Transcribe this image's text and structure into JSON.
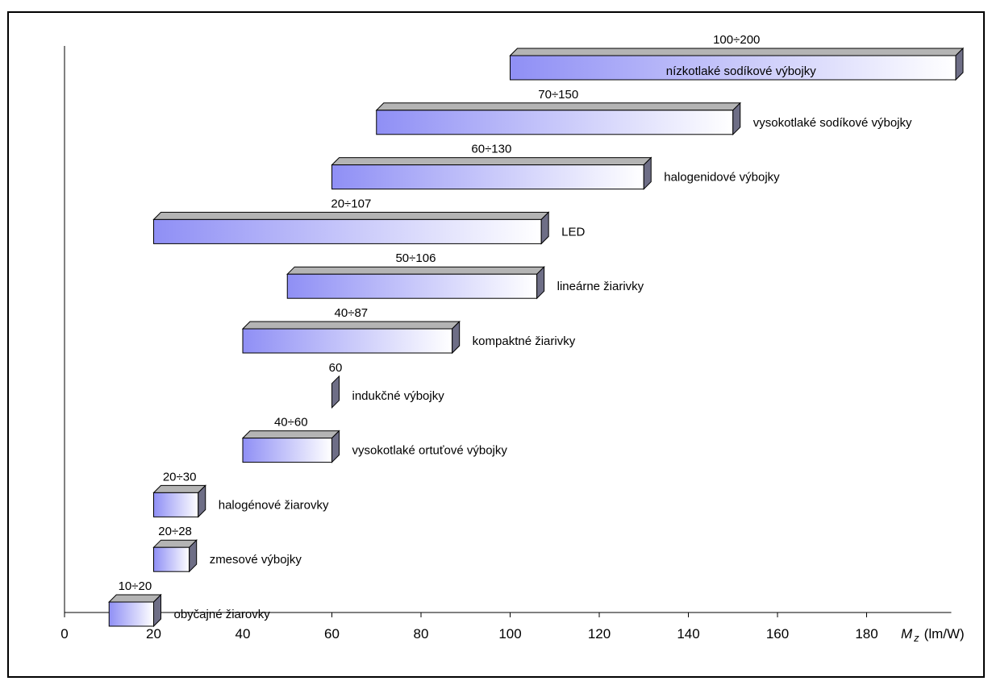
{
  "chart_data": {
    "type": "bar",
    "orientation": "horizontal-range",
    "xlabel_symbol": "M",
    "xlabel_subscript": "z",
    "xlabel_unit": "(lm/W)",
    "xlim": [
      0,
      200
    ],
    "xticks": [
      0,
      20,
      40,
      60,
      80,
      100,
      120,
      140,
      160,
      180
    ],
    "grid": false,
    "colors": {
      "bar_start": "#8f8ff5",
      "bar_end": "#ffffff",
      "bar_top": "#b4b4b4",
      "bar_side": "#6e6e86"
    },
    "bars": [
      {
        "name": "nízkotlaké sodíkové výbojky",
        "label": "100÷200",
        "min": 100,
        "max": 200
      },
      {
        "name": "vysokotlaké sodíkové výbojky",
        "label": "70÷150",
        "min": 70,
        "max": 150
      },
      {
        "name": "halogenidové výbojky",
        "label": "60÷130",
        "min": 60,
        "max": 130
      },
      {
        "name": "LED",
        "label": "20÷107",
        "min": 20,
        "max": 107
      },
      {
        "name": "lineárne žiarivky",
        "label": "50÷106",
        "min": 50,
        "max": 106
      },
      {
        "name": "kompaktné žiarivky",
        "label": "40÷87",
        "min": 40,
        "max": 87
      },
      {
        "name": "indukčné výbojky",
        "label": "60",
        "min": 60,
        "max": 60
      },
      {
        "name": "vysokotlaké ortuťové výbojky",
        "label": "40÷60",
        "min": 40,
        "max": 60
      },
      {
        "name": "halogénové žiarovky",
        "label": "20÷30",
        "min": 20,
        "max": 30
      },
      {
        "name": "zmesové výbojky",
        "label": "20÷28",
        "min": 20,
        "max": 28
      },
      {
        "name": "obyčajné žiarovky",
        "label": "10÷20",
        "min": 10,
        "max": 20
      }
    ]
  }
}
